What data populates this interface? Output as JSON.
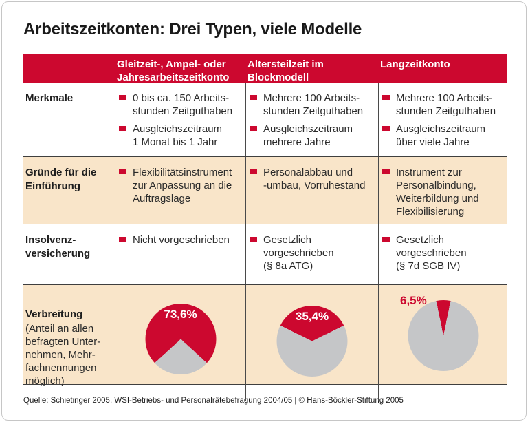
{
  "page": {
    "title": "Arbeitszeitkonten: Drei Typen, viele Modelle",
    "source": "Quelle: Schietinger 2005, WSI-Betriebs- und Personalrätebefragung 2004/05 | © Hans-Böckler-Stiftung 2005"
  },
  "colors": {
    "accent_red": "#cc082f",
    "row_beige": "#f9e5c9",
    "pie_gray": "#c5c6c8"
  },
  "table": {
    "column_headers": [
      "Gleitzeit-, Ampel- oder\nJahresarbeitszeitkonto",
      "Altersteilzeit im\nBlockmodell",
      "Langzeitkonto"
    ],
    "rows": [
      {
        "label": "Merkmale",
        "cells": [
          {
            "bullets": [
              "0 bis ca. 150 Arbeits-\nstunden Zeitguthaben",
              "Ausgleichszeitraum\n1 Monat bis 1 Jahr"
            ]
          },
          {
            "bullets": [
              "Mehrere 100 Arbeits-\nstunden Zeitguthaben",
              "Ausgleichszeitraum\nmehrere Jahre"
            ]
          },
          {
            "bullets": [
              "Mehrere 100 Arbeits-\nstunden Zeitguthaben",
              "Ausgleichszeitraum\nüber viele Jahre"
            ]
          }
        ]
      },
      {
        "label": "Gründe für die\nEinführung",
        "cells": [
          {
            "bullets": [
              "Flexibilitätsinstrument\nzur Anpassung an die\nAuftragslage"
            ]
          },
          {
            "bullets": [
              "Personalabbau und\n-umbau, Vorruhestand"
            ]
          },
          {
            "bullets": [
              "Instrument zur\nPersonalbindung,\nWeiterbildung und\nFlexibilisierung"
            ]
          }
        ]
      },
      {
        "label": "Insolvenz-\nversicherung",
        "cells": [
          {
            "bullets": [
              "Nicht vorgeschrieben"
            ]
          },
          {
            "bullets": [
              "Gesetzlich\nvorgeschrieben\n(§ 8a ATG)"
            ]
          },
          {
            "bullets": [
              "Gesetzlich\nvorgeschrieben\n(§ 7d SGB IV)"
            ]
          }
        ]
      }
    ],
    "verbreitung_row": {
      "label": "Verbreitung",
      "note": "(Anteil an allen\nbefragten Unter-\nnehmen, Mehr-\nfachnennungen\nmöglich)"
    }
  },
  "chart_data": [
    {
      "type": "pie",
      "column": "Gleitzeit-, Ampel- oder Jahresarbeitszeitkonto",
      "label": "73,6%",
      "label_placement": "inside",
      "label_color": "#ffffff",
      "slices": [
        {
          "name": "Verbreitung",
          "value": 73.6,
          "color": "#cc082f"
        },
        {
          "name": "Rest",
          "value": 26.4,
          "color": "#c5c6c8"
        }
      ]
    },
    {
      "type": "pie",
      "column": "Altersteilzeit im Blockmodell",
      "label": "35,4%",
      "label_placement": "inside",
      "label_color": "#ffffff",
      "slices": [
        {
          "name": "Verbreitung",
          "value": 35.4,
          "color": "#cc082f"
        },
        {
          "name": "Rest",
          "value": 64.6,
          "color": "#c5c6c8"
        }
      ]
    },
    {
      "type": "pie",
      "column": "Langzeitkonto",
      "label": "6,5%",
      "label_placement": "outside",
      "label_color": "#cc082f",
      "slices": [
        {
          "name": "Verbreitung",
          "value": 6.5,
          "color": "#cc082f"
        },
        {
          "name": "Rest",
          "value": 93.5,
          "color": "#c5c6c8"
        }
      ]
    }
  ]
}
